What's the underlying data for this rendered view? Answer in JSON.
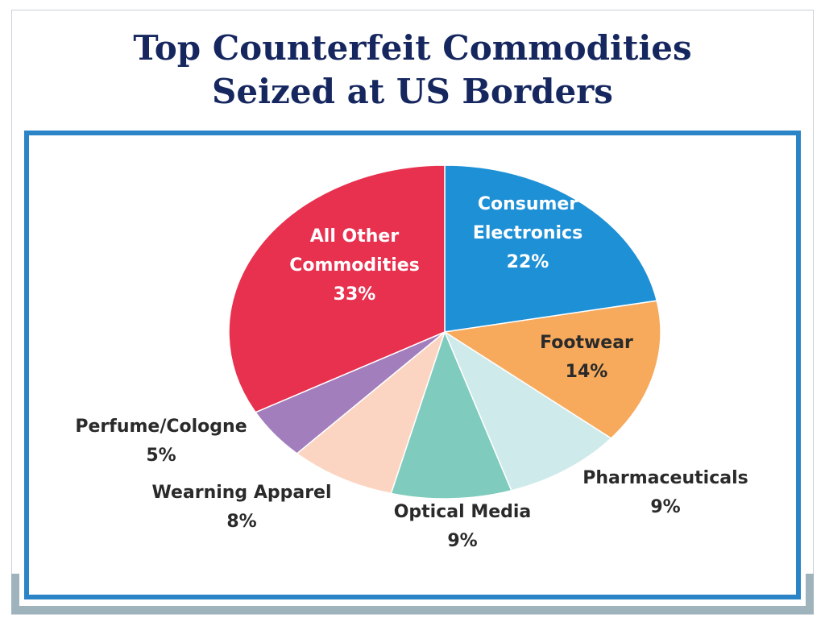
{
  "chart_data": {
    "type": "pie",
    "title": "Top Counterfeit Commodities Seized at US Borders",
    "title_lines": [
      "Top Counterfeit Commodities",
      "Seized at US Borders"
    ],
    "slices": [
      {
        "label": "Consumer Electronics",
        "label_lines": [
          "Consumer",
          "Electronics"
        ],
        "value": 22,
        "value_text": "22%",
        "color": "#1e90d6"
      },
      {
        "label": "Footwear",
        "label_lines": [
          "Footwear"
        ],
        "value": 14,
        "value_text": "14%",
        "color": "#f7aa5c"
      },
      {
        "label": "Pharmaceuticals",
        "label_lines": [
          "Pharmaceuticals"
        ],
        "value": 9,
        "value_text": "9%",
        "color": "#cfeaea"
      },
      {
        "label": "Optical Media",
        "label_lines": [
          "Optical Media"
        ],
        "value": 9,
        "value_text": "9%",
        "color": "#7fcbbd"
      },
      {
        "label": "Wearning Apparel",
        "label_lines": [
          "Wearning Apparel"
        ],
        "value": 8,
        "value_text": "8%",
        "color": "#fcd5c2"
      },
      {
        "label": "Perfume/Cologne",
        "label_lines": [
          "Perfume/Cologne"
        ],
        "value": 5,
        "value_text": "5%",
        "color": "#a27ebd"
      },
      {
        "label": "All Other Commodities",
        "label_lines": [
          "All Other",
          "Commodities"
        ],
        "value": 33,
        "value_text": "33%",
        "color": "#e8304f"
      }
    ],
    "start_direction": "12 o'clock",
    "direction": "clockwise"
  },
  "colors": {
    "title": "#16275f",
    "chart_border": "#2a84c6",
    "frame_accent": "#9fb3bc"
  }
}
